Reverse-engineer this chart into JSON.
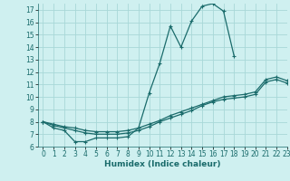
{
  "xlabel": "Humidex (Indice chaleur)",
  "bg_color": "#cff0f0",
  "grid_color": "#a8d8d8",
  "line_color": "#1a6b6b",
  "xlim": [
    -0.5,
    23
  ],
  "ylim": [
    6,
    17.5
  ],
  "xticks": [
    0,
    1,
    2,
    3,
    4,
    5,
    6,
    7,
    8,
    9,
    10,
    11,
    12,
    13,
    14,
    15,
    16,
    17,
    18,
    19,
    20,
    21,
    22,
    23
  ],
  "yticks": [
    6,
    7,
    8,
    9,
    10,
    11,
    12,
    13,
    14,
    15,
    16,
    17
  ],
  "line1_x": [
    0,
    1,
    2,
    3,
    4,
    5,
    6,
    7,
    8,
    9,
    10,
    11,
    12,
    13,
    14,
    15,
    16,
    17,
    18
  ],
  "line1_y": [
    8.0,
    7.5,
    7.3,
    6.4,
    6.4,
    6.7,
    6.7,
    6.7,
    6.8,
    7.5,
    10.3,
    12.7,
    15.7,
    14.0,
    16.1,
    17.3,
    17.5,
    16.9,
    13.3
  ],
  "line2_x": [
    0,
    1,
    2,
    3,
    4,
    5,
    6,
    7,
    8,
    9,
    10,
    11,
    12,
    13,
    14,
    15,
    16,
    17,
    18,
    19,
    20,
    21,
    22,
    23
  ],
  "line2_y": [
    8.0,
    7.8,
    7.6,
    7.5,
    7.3,
    7.2,
    7.2,
    7.2,
    7.3,
    7.5,
    7.8,
    8.1,
    8.5,
    8.8,
    9.1,
    9.4,
    9.7,
    10.0,
    10.1,
    10.2,
    10.4,
    11.4,
    11.6,
    11.3
  ],
  "line3_x": [
    0,
    1,
    2,
    3,
    4,
    5,
    6,
    7,
    8,
    9,
    10,
    11,
    12,
    13,
    14,
    15,
    16,
    17,
    18,
    19,
    20,
    21,
    22,
    23
  ],
  "line3_y": [
    8.0,
    7.7,
    7.5,
    7.3,
    7.1,
    7.0,
    7.0,
    7.0,
    7.1,
    7.3,
    7.6,
    8.0,
    8.3,
    8.6,
    8.9,
    9.3,
    9.6,
    9.8,
    9.9,
    10.0,
    10.2,
    11.2,
    11.4,
    11.1
  ],
  "marker": "+",
  "markersize": 3,
  "linewidth": 0.9,
  "tick_fontsize": 5.5,
  "label_fontsize": 6.5
}
